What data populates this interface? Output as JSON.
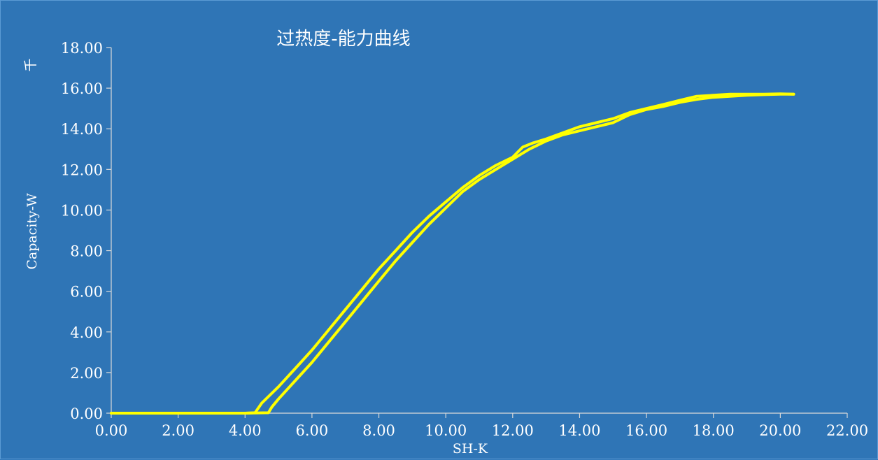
{
  "chart_data": {
    "type": "line",
    "title": "过热度-能力曲线",
    "xlabel": "SH-K",
    "ylabel": "Capacity-W",
    "y_unit": "千",
    "xlim": [
      0,
      22
    ],
    "ylim": [
      0,
      18
    ],
    "x_ticks": [
      "0.00",
      "2.00",
      "4.00",
      "6.00",
      "8.00",
      "10.00",
      "12.00",
      "14.00",
      "16.00",
      "18.00",
      "20.00",
      "22.00"
    ],
    "y_ticks": [
      "0.00",
      "2.00",
      "4.00",
      "6.00",
      "8.00",
      "10.00",
      "12.00",
      "14.00",
      "16.00",
      "18.00"
    ],
    "grid": false,
    "background": "#2f75b6",
    "series_color": "#ffff00",
    "series": [
      {
        "x": [
          0.0,
          1.0,
          2.0,
          3.0,
          4.0,
          4.3,
          4.5,
          5.0,
          5.5,
          6.0,
          6.5,
          7.0,
          7.5,
          8.0,
          8.5,
          9.0,
          9.5,
          10.0,
          10.5,
          11.0,
          11.5,
          12.0,
          12.3,
          12.6,
          13.0,
          13.5,
          14.0,
          14.5,
          15.0,
          15.5,
          16.0,
          16.5,
          17.0,
          17.5,
          18.0,
          18.5,
          19.0,
          19.5,
          20.0,
          20.4
        ],
        "y": [
          0.0,
          0.0,
          0.0,
          0.0,
          0.0,
          0.02,
          0.5,
          1.3,
          2.2,
          3.1,
          4.1,
          5.1,
          6.1,
          7.1,
          8.0,
          8.9,
          9.7,
          10.4,
          11.1,
          11.7,
          12.2,
          12.6,
          13.1,
          13.3,
          13.5,
          13.8,
          14.1,
          14.3,
          14.5,
          14.8,
          15.0,
          15.2,
          15.4,
          15.6,
          15.65,
          15.7,
          15.7,
          15.7,
          15.72,
          15.7
        ]
      },
      {
        "x": [
          20.4,
          20.0,
          19.5,
          19.0,
          18.5,
          18.0,
          17.5,
          17.0,
          16.5,
          16.0,
          15.5,
          15.0,
          14.5,
          14.0,
          13.5,
          13.0,
          12.5,
          12.0,
          11.5,
          11.0,
          10.5,
          10.0,
          9.5,
          9.0,
          8.5,
          8.0,
          7.5,
          7.0,
          6.5,
          6.0,
          5.5,
          5.0,
          4.8,
          4.7,
          4.0,
          3.0,
          2.0,
          1.0,
          0.0
        ],
        "y": [
          15.7,
          15.7,
          15.68,
          15.65,
          15.6,
          15.55,
          15.45,
          15.3,
          15.1,
          14.95,
          14.7,
          14.3,
          14.1,
          13.9,
          13.7,
          13.4,
          13.0,
          12.5,
          12.0,
          11.5,
          10.9,
          10.1,
          9.3,
          8.4,
          7.5,
          6.5,
          5.5,
          4.5,
          3.5,
          2.5,
          1.6,
          0.7,
          0.3,
          0.02,
          0.0,
          0.0,
          0.0,
          0.0,
          0.0
        ]
      }
    ]
  }
}
